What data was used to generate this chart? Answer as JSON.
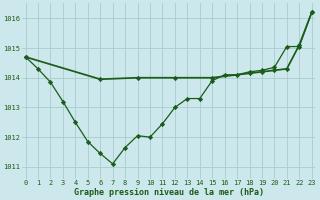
{
  "title": "Graphe pression niveau de la mer (hPa)",
  "background_color": "#cce8ec",
  "grid_color": "#aacccc",
  "line_color": "#1a5c1a",
  "xlim": [
    -0.3,
    23.3
  ],
  "ylim": [
    1010.6,
    1016.5
  ],
  "yticks": [
    1011,
    1012,
    1013,
    1014,
    1015,
    1016
  ],
  "xtick_labels": [
    "0",
    "1",
    "2",
    "3",
    "4",
    "5",
    "6",
    "7",
    "8",
    "9",
    "10",
    "11",
    "12",
    "13",
    "14",
    "15",
    "16",
    "17",
    "18",
    "19",
    "20",
    "21",
    "22",
    "23"
  ],
  "xticks": [
    0,
    1,
    2,
    3,
    4,
    5,
    6,
    7,
    8,
    9,
    10,
    11,
    12,
    13,
    14,
    15,
    16,
    17,
    18,
    19,
    20,
    21,
    22,
    23
  ],
  "line1_x": [
    0,
    1,
    2,
    3,
    4,
    5,
    6,
    7,
    8,
    9,
    10,
    11,
    12,
    13,
    14,
    15,
    16,
    17,
    18,
    19,
    20,
    21,
    22,
    23
  ],
  "line1_y": [
    1014.7,
    1014.3,
    1013.85,
    1013.2,
    1012.5,
    1011.85,
    1011.45,
    1011.1,
    1011.65,
    1012.05,
    1012.0,
    1012.45,
    1013.0,
    1013.3,
    1013.3,
    1013.9,
    1014.1,
    1014.1,
    1014.2,
    1014.25,
    1014.35,
    1015.05,
    1015.05,
    1016.2
  ],
  "line2_x": [
    0,
    6,
    9,
    12,
    15,
    18,
    19,
    20,
    21,
    22,
    23
  ],
  "line2_y": [
    1014.7,
    1013.95,
    1014.0,
    1014.0,
    1014.0,
    1014.15,
    1014.2,
    1014.25,
    1014.3,
    1015.1,
    1016.2
  ],
  "marker": "D",
  "marker_size": 2.2,
  "line_width": 0.9,
  "tick_fontsize": 5.0,
  "xlabel_fontsize": 6.0
}
